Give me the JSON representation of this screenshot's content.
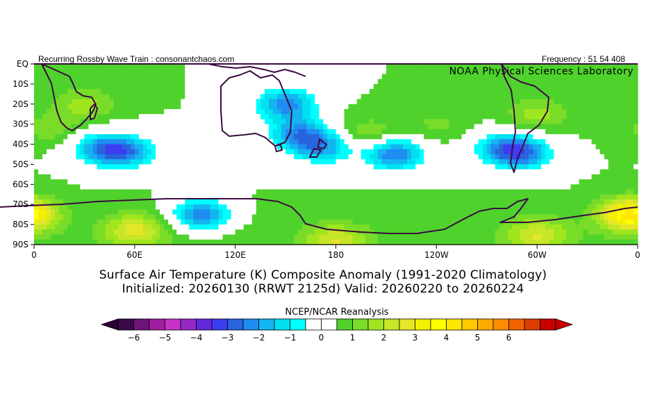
{
  "header": {
    "left_text": "Recurring Rossby Wave Train : consonantchaos.com",
    "right_text": "Frequency : 51 54 408",
    "lab_label": "NOAA Physical Sciences Laboratory"
  },
  "titles": {
    "line1": "Surface Air Temperature (K) Composite Anomaly (1991-2020 Climatology)",
    "line2": "Initialized: 20260130 (RRWT 2125d) Valid: 20260220 to 20260224"
  },
  "colorbar": {
    "title": "NCEP/NCAR Reanalysis",
    "tick_labels": [
      "-6",
      "-5",
      "-4",
      "-3",
      "-2",
      "-1",
      "0",
      "1",
      "2",
      "3",
      "4",
      "5",
      "6"
    ],
    "colors": [
      "#3a0a4a",
      "#6e1478",
      "#a01ea0",
      "#c832c8",
      "#9628c8",
      "#6428dc",
      "#3c3cf0",
      "#2864dc",
      "#1e8cf0",
      "#14b4f0",
      "#00e1f0",
      "#00ffff",
      "#ffffff",
      "#ffffff",
      "#50d22d",
      "#78dc28",
      "#a0e61e",
      "#c8e628",
      "#e6e628",
      "#f0f000",
      "#ffff00",
      "#ffe600",
      "#ffc800",
      "#ffaa00",
      "#ff8c00",
      "#f06400",
      "#dc3c00",
      "#c80000"
    ],
    "under_color": "#2a0035",
    "over_color": "#c80000"
  },
  "map": {
    "lat_labels": [
      "EQ",
      "10S",
      "20S",
      "30S",
      "40S",
      "50S",
      "60S",
      "70S",
      "80S",
      "90S"
    ],
    "lon_labels": [
      "0",
      "60E",
      "120E",
      "180",
      "120W",
      "60W",
      "0"
    ],
    "projection": "cylindrical-equidistant",
    "domain": {
      "lon": [
        0,
        360
      ],
      "lat": [
        -90,
        0
      ]
    }
  },
  "field_data": {
    "units": "K",
    "background_anomaly": 1.0,
    "anomaly_centers": [
      {
        "lon": 40,
        "lat": -42,
        "value": -1.2
      },
      {
        "lon": 55,
        "lat": -44,
        "value": -1.4
      },
      {
        "lon": 100,
        "lat": -75,
        "value": -1.9
      },
      {
        "lon": 150,
        "lat": -20,
        "value": -1.8
      },
      {
        "lon": 158,
        "lat": -35,
        "value": -1.6
      },
      {
        "lon": 172,
        "lat": -42,
        "value": -1.2
      },
      {
        "lon": 215,
        "lat": -45,
        "value": -2.0
      },
      {
        "lon": 280,
        "lat": -42,
        "value": -1.2
      },
      {
        "lon": 292,
        "lat": -45,
        "value": -1.4
      },
      {
        "lon": 30,
        "lat": -20,
        "value": 2.2
      },
      {
        "lon": 10,
        "lat": -32,
        "value": 1.8
      },
      {
        "lon": 200,
        "lat": -35,
        "value": 2.0
      },
      {
        "lon": 240,
        "lat": -30,
        "value": 1.6
      },
      {
        "lon": 300,
        "lat": -25,
        "value": 2.2
      },
      {
        "lon": 355,
        "lat": -75,
        "value": 4.6
      },
      {
        "lon": 60,
        "lat": -83,
        "value": 3.0
      },
      {
        "lon": 180,
        "lat": -88,
        "value": 2.8
      },
      {
        "lon": 300,
        "lat": -85,
        "value": 2.8
      }
    ]
  }
}
